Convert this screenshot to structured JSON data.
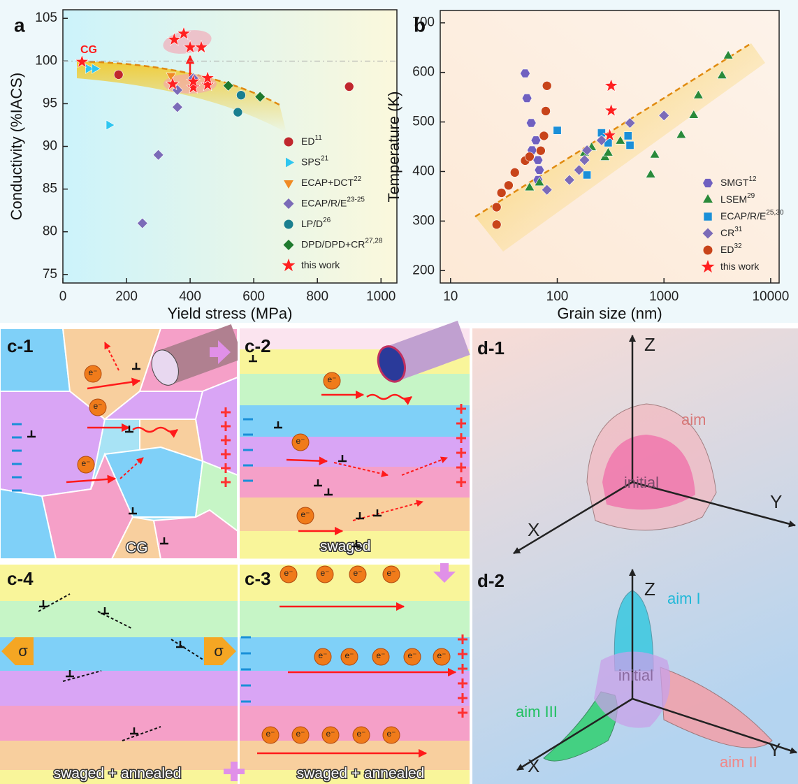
{
  "chart_data": [
    {
      "type": "scatter",
      "panel": "a",
      "xlabel": "Yield stress (MPa)",
      "ylabel": "Conductivity (%IACS)",
      "xlim": [
        0,
        1050
      ],
      "ylim": [
        74,
        106
      ],
      "xticks": [
        0,
        200,
        400,
        600,
        800,
        1000
      ],
      "yticks": [
        75,
        80,
        85,
        90,
        95,
        100,
        105
      ],
      "reference_line": 100,
      "annotation": "CG",
      "legend": "lower right",
      "series": [
        {
          "name": "ED",
          "superscript": "11",
          "color": "#c0272d",
          "marker": "circle",
          "x": [
            175,
            900
          ],
          "y": [
            98.4,
            97
          ]
        },
        {
          "name": "SPS",
          "superscript": "21",
          "color": "#2ec6f0",
          "marker": "triangle-right",
          "x": [
            80,
            100,
            145
          ],
          "y": [
            99.1,
            99.1,
            92.5
          ]
        },
        {
          "name": "ECAP+DCT",
          "superscript": "22",
          "color": "#f08a24",
          "marker": "triangle-down",
          "x": [
            340
          ],
          "y": [
            98.3
          ]
        },
        {
          "name": "ECAP/R/E",
          "superscript": "23-25",
          "color": "#7b6bb8",
          "marker": "diamond",
          "x": [
            250,
            300,
            360,
            360,
            410
          ],
          "y": [
            81,
            89,
            94.6,
            96.6,
            98
          ]
        },
        {
          "name": "LP/D",
          "superscript": "26",
          "color": "#1a7f8f",
          "marker": "circle",
          "x": [
            550,
            560
          ],
          "y": [
            94,
            96
          ]
        },
        {
          "name": "DPD/DPD+CR",
          "superscript": "27,28",
          "color": "#1f7a2e",
          "marker": "diamond",
          "x": [
            520,
            620
          ],
          "y": [
            97.1,
            95.8
          ]
        },
        {
          "name": "this work",
          "color": "#ff2020",
          "marker": "star",
          "x": [
            60,
            345,
            410,
            410,
            455,
            455,
            350,
            380,
            400,
            435
          ],
          "y": [
            99.9,
            97.3,
            96.9,
            97.6,
            97.2,
            98,
            102.5,
            103.2,
            101.6,
            101.6
          ]
        }
      ]
    },
    {
      "type": "scatter",
      "panel": "b",
      "xlog": true,
      "xlabel": "Grain size (nm)",
      "ylabel": "Temperature (K)",
      "xlim": [
        8,
        12000
      ],
      "ylim": [
        175,
        725
      ],
      "xticks": [
        10,
        100,
        1000,
        10000
      ],
      "yticks": [
        200,
        300,
        400,
        500,
        600,
        700
      ],
      "legend": "lower right",
      "series": [
        {
          "name": "SMGT",
          "superscript": "12",
          "color": "#7060c0",
          "marker": "hexagon",
          "x": [
            50,
            52,
            57,
            58,
            63,
            66,
            68,
            66
          ],
          "y": [
            598,
            548,
            498,
            443,
            463,
            423,
            403,
            383
          ]
        },
        {
          "name": "LSEM",
          "superscript": "29",
          "color": "#2a8a3a",
          "marker": "triangle-up",
          "x": [
            55,
            68,
            180,
            210,
            280,
            300,
            390,
            750,
            820,
            1450,
            1900,
            2100,
            3500,
            4000
          ],
          "y": [
            367,
            377,
            437,
            448,
            428,
            437,
            461,
            393,
            433,
            473,
            513,
            553,
            593,
            633
          ]
        },
        {
          "name": "ECAP/R/E",
          "superscript": "25,30",
          "color": "#1a8fd8",
          "marker": "square",
          "x": [
            100,
            190,
            260,
            300,
            460,
            480
          ],
          "y": [
            483,
            393,
            478,
            458,
            472,
            453
          ]
        },
        {
          "name": "CR",
          "superscript": "31",
          "color": "#7b6bb8",
          "marker": "diamond",
          "x": [
            80,
            130,
            160,
            180,
            190,
            260,
            480,
            1000
          ],
          "y": [
            363,
            383,
            403,
            423,
            443,
            463,
            498,
            513
          ]
        },
        {
          "name": "ED",
          "superscript": "32",
          "color": "#c8441a",
          "marker": "circle",
          "x": [
            27,
            27,
            30,
            35,
            40,
            50,
            55,
            70,
            75,
            78,
            80
          ],
          "y": [
            293,
            328,
            357,
            372,
            398,
            422,
            430,
            442,
            472,
            522,
            573
          ]
        },
        {
          "name": "this work",
          "color": "#ff2020",
          "marker": "star",
          "x": [
            310,
            320,
            320
          ],
          "y": [
            473,
            523,
            573
          ]
        }
      ]
    }
  ],
  "schematic": {
    "electron": "e⁻",
    "c1": {
      "label": "c-1",
      "caption": "CG"
    },
    "c2": {
      "label": "c-2",
      "caption": "swaged"
    },
    "c3": {
      "label": "c-3",
      "caption": "swaged + annealed"
    },
    "c4": {
      "label": "c-4",
      "caption": "swaged + annealed",
      "stress": "σ"
    },
    "d1": {
      "label": "d-1",
      "axes": [
        "X",
        "Y",
        "Z"
      ],
      "outer": "aim",
      "inner": "initial"
    },
    "d2": {
      "label": "d-2",
      "axes": [
        "X",
        "Y",
        "Z"
      ],
      "lobes": [
        "aim I",
        "aim II",
        "aim III"
      ],
      "center": "initial"
    }
  }
}
